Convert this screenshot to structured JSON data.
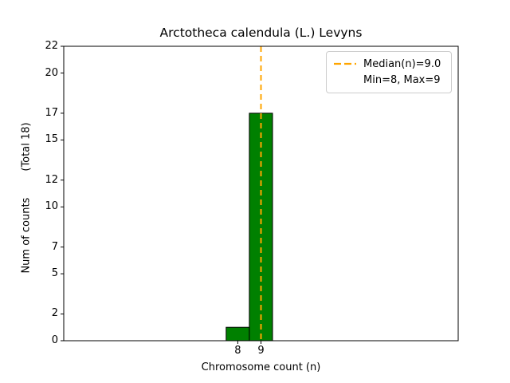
{
  "chart_data": {
    "type": "bar",
    "title": "Arctotheca calendula (L.) Levyns",
    "xlabel": "Chromosome count (n)",
    "ylabel": "Num of counts        (Total 18)",
    "total_counts": 18,
    "bars": [
      {
        "x": 8,
        "count": 1
      },
      {
        "x": 9,
        "count": 17
      }
    ],
    "bar_color": "#008000",
    "bar_edge_color": "#000000",
    "median": 9.0,
    "median_line_color": "#FFA500",
    "legend": [
      {
        "label": "Median(n)=9.0",
        "marker": "dashed-line"
      },
      {
        "label": "Min=8, Max=9",
        "marker": "none"
      }
    ],
    "xticks": [
      8,
      9
    ],
    "yticks": [
      0,
      2,
      5,
      7,
      10,
      12,
      15,
      17,
      20,
      22
    ],
    "xlim": [
      0.5,
      17.5
    ],
    "ylim": [
      0,
      22
    ],
    "grid": false,
    "legend_position": "upper-right"
  }
}
